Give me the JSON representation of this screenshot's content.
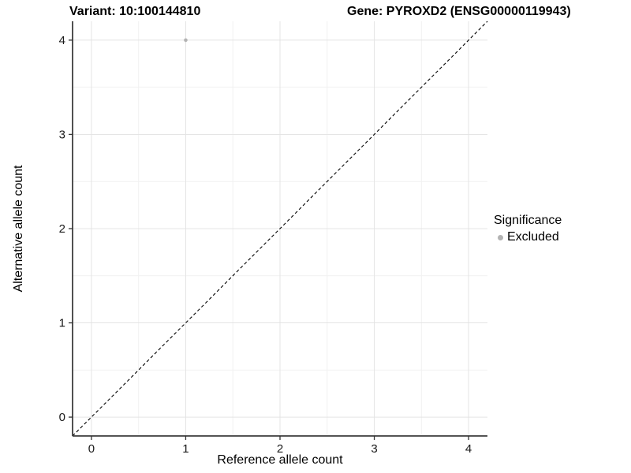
{
  "chart_data": {
    "type": "scatter",
    "title_left": "Variant: 10:100144810",
    "title_right": "Gene: PYROXD2 (ENSG00000119943)",
    "xlabel": "Reference allele count",
    "ylabel": "Alternative allele count",
    "xlim": [
      -0.2,
      4.2
    ],
    "ylim": [
      -0.2,
      4.2
    ],
    "x_ticks": [
      0,
      1,
      2,
      3,
      4
    ],
    "y_ticks": [
      0,
      1,
      2,
      3,
      4
    ],
    "x_minor_ticks": [
      0.5,
      1.5,
      2.5,
      3.5
    ],
    "y_minor_ticks": [
      0.5,
      1.5,
      2.5,
      3.5
    ],
    "grid": "major+minor",
    "points": [
      {
        "x": 1,
        "y": 4,
        "series": "Excluded"
      }
    ],
    "identity_line": {
      "slope": 1,
      "intercept": 0,
      "style": "dashed"
    },
    "legend": {
      "title": "Significance",
      "position": "right",
      "entries": [
        {
          "label": "Excluded",
          "color": "#b3b3b3",
          "marker": "circle"
        }
      ]
    },
    "colors": {
      "point": "#b3b3b3",
      "grid_major": "#e4e4e4",
      "grid_minor": "#f1f1f1",
      "axis_line": "#3c3c3c",
      "tick": "#333333",
      "tick_label": "#1a1a1a",
      "identity_line": "#000000",
      "text": "#000000"
    }
  }
}
